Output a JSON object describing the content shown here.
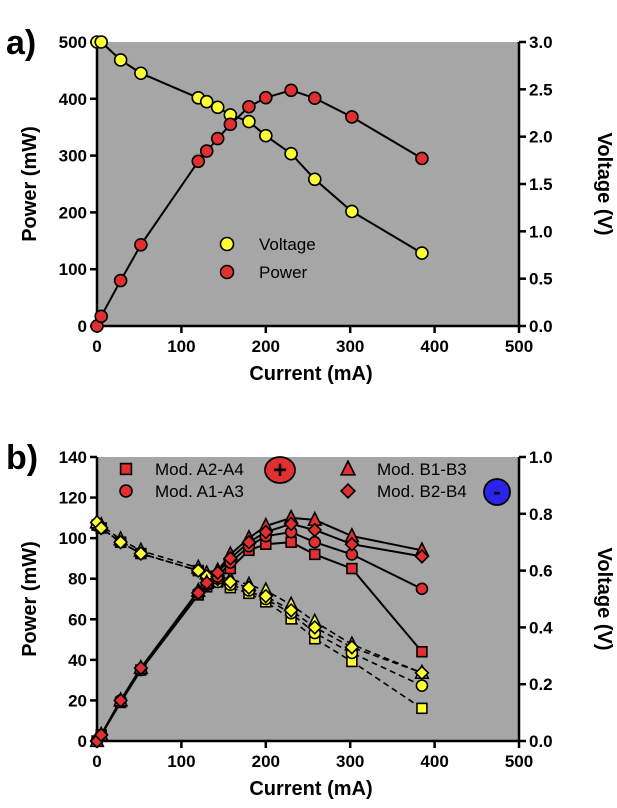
{
  "chart_data": [
    {
      "panel_label": "a)",
      "type": "scatter",
      "xlabel": "Current (mA)",
      "ylabel": "Power (mW)",
      "y2label": "Voltage (V)",
      "xlim": [
        0,
        500
      ],
      "ylim": [
        0,
        500
      ],
      "y2lim": [
        0,
        3.0
      ],
      "xticks": [
        0,
        100,
        200,
        300,
        400,
        500
      ],
      "yticks": [
        0,
        100,
        200,
        300,
        400,
        500
      ],
      "y2ticks": [
        "0.0",
        "0.5",
        "1.0",
        "1.5",
        "2.0",
        "2.5",
        "3.0"
      ],
      "plot_background": "#a6a6a6",
      "legend_position": "center",
      "series": [
        {
          "name": "Voltage",
          "axis": "right",
          "marker": "circle",
          "color": "#ffff33",
          "x": [
            0,
            5,
            28,
            52,
            120,
            130,
            143,
            158,
            180,
            200,
            230,
            258,
            302,
            385
          ],
          "y": [
            3.0,
            3.0,
            2.81,
            2.67,
            2.41,
            2.37,
            2.31,
            2.23,
            2.16,
            2.01,
            1.82,
            1.55,
            1.21,
            0.77
          ]
        },
        {
          "name": "Power",
          "axis": "left",
          "marker": "circle",
          "color": "#e03030",
          "x": [
            0,
            5,
            28,
            52,
            120,
            130,
            143,
            158,
            180,
            200,
            230,
            258,
            302,
            385
          ],
          "y": [
            0,
            17,
            80,
            143,
            290,
            308,
            330,
            355,
            386,
            402,
            415,
            401,
            368,
            295
          ]
        }
      ]
    },
    {
      "panel_label": "b)",
      "type": "scatter",
      "xlabel": "Current (mA)",
      "ylabel": "Power (mW)",
      "y2label": "Voltage (V)",
      "xlim": [
        0,
        500
      ],
      "ylim": [
        0,
        140
      ],
      "y2lim": [
        0,
        1.0
      ],
      "xticks": [
        0,
        100,
        200,
        300,
        400,
        500
      ],
      "yticks": [
        0,
        20,
        40,
        60,
        80,
        100,
        120,
        140
      ],
      "y2ticks": [
        "0.0",
        "0.2",
        "0.4",
        "0.6",
        "0.8",
        "1.0"
      ],
      "plot_background": "#a6a6a6",
      "legend_position": "top",
      "positive_badge": "+",
      "negative_badge": "-",
      "series": [
        {
          "name": "Mod. A2-A4",
          "marker": "square",
          "x": [
            0,
            5,
            28,
            52,
            120,
            130,
            143,
            158,
            180,
            200,
            230,
            258,
            302,
            385
          ],
          "power": [
            0,
            3,
            19,
            35,
            72,
            76,
            80,
            85,
            94,
            97,
            98,
            92,
            85,
            44
          ],
          "voltage": [
            0.76,
            0.75,
            0.7,
            0.66,
            0.6,
            0.58,
            0.56,
            0.54,
            0.52,
            0.49,
            0.43,
            0.36,
            0.28,
            0.115
          ]
        },
        {
          "name": "Mod. A1-A3",
          "marker": "circle",
          "x": [
            0,
            5,
            28,
            52,
            120,
            130,
            143,
            158,
            180,
            200,
            230,
            258,
            302,
            385
          ],
          "power": [
            0,
            3,
            20,
            35,
            73,
            77,
            81,
            88,
            96,
            101,
            103,
            98,
            92,
            75
          ],
          "voltage": [
            0.76,
            0.75,
            0.7,
            0.66,
            0.6,
            0.58,
            0.56,
            0.55,
            0.53,
            0.5,
            0.45,
            0.38,
            0.31,
            0.195
          ]
        },
        {
          "name": "Mod. B1-B3",
          "marker": "triangle",
          "x": [
            0,
            5,
            28,
            52,
            120,
            130,
            143,
            158,
            180,
            200,
            230,
            258,
            302,
            385
          ],
          "power": [
            0,
            3,
            20,
            36,
            74,
            78,
            84,
            92,
            100,
            106,
            110,
            109,
            101,
            94
          ],
          "voltage": [
            0.77,
            0.76,
            0.71,
            0.67,
            0.61,
            0.59,
            0.58,
            0.57,
            0.55,
            0.53,
            0.48,
            0.42,
            0.34,
            0.24
          ]
        },
        {
          "name": "Mod. B2-B4",
          "marker": "diamond",
          "x": [
            0,
            5,
            28,
            52,
            120,
            130,
            143,
            158,
            180,
            200,
            230,
            258,
            302,
            385
          ],
          "power": [
            0,
            3,
            20,
            36,
            73,
            78,
            83,
            90,
            98,
            103,
            107,
            104,
            97,
            91
          ],
          "voltage": [
            0.77,
            0.75,
            0.7,
            0.66,
            0.6,
            0.58,
            0.57,
            0.56,
            0.54,
            0.51,
            0.46,
            0.4,
            0.33,
            0.24
          ]
        }
      ]
    }
  ]
}
